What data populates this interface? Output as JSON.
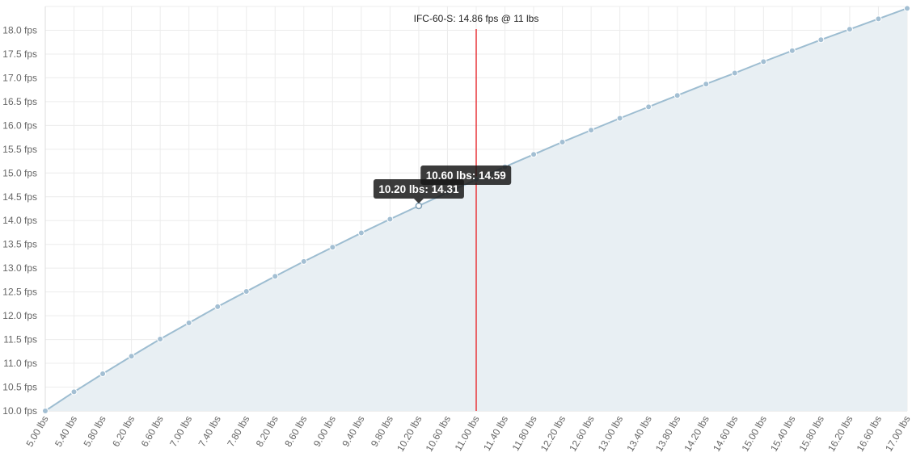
{
  "chart_data": {
    "type": "area",
    "x_unit": "lbs",
    "y_unit": "fps",
    "x": [
      5.0,
      5.4,
      5.8,
      6.2,
      6.6,
      7.0,
      7.4,
      7.8,
      8.2,
      8.6,
      9.0,
      9.4,
      9.8,
      10.2,
      10.6,
      11.0,
      11.4,
      11.8,
      12.2,
      12.6,
      13.0,
      13.4,
      13.8,
      14.2,
      14.6,
      15.0,
      15.4,
      15.8,
      16.2,
      16.6,
      17.0
    ],
    "x_tick_labels": [
      "5.00 lbs",
      "5.40 lbs",
      "5.80 lbs",
      "6.20 lbs",
      "6.60 lbs",
      "7.00 lbs",
      "7.40 lbs",
      "7.80 lbs",
      "8.20 lbs",
      "8.60 lbs",
      "9.00 lbs",
      "9.40 lbs",
      "9.80 lbs",
      "10.20 lbs",
      "10.60 lbs",
      "11.00 lbs",
      "11.40 lbs",
      "11.80 lbs",
      "12.20 lbs",
      "12.60 lbs",
      "13.00 lbs",
      "13.40 lbs",
      "13.80 lbs",
      "14.20 lbs",
      "14.60 lbs",
      "15.00 lbs",
      "15.40 lbs",
      "15.80 lbs",
      "16.20 lbs",
      "16.60 lbs",
      "17.00 lbs"
    ],
    "y": [
      10.0,
      10.4,
      10.78,
      11.15,
      11.51,
      11.85,
      12.19,
      12.51,
      12.83,
      13.14,
      13.44,
      13.74,
      14.03,
      14.31,
      14.59,
      14.86,
      15.13,
      15.39,
      15.65,
      15.9,
      16.15,
      16.39,
      16.63,
      16.87,
      17.1,
      17.34,
      17.57,
      17.8,
      18.02,
      18.24,
      18.46
    ],
    "y_tick_labels": [
      "10.0 fps",
      "10.5 fps",
      "11.0 fps",
      "11.5 fps",
      "12.0 fps",
      "12.5 fps",
      "13.0 fps",
      "13.5 fps",
      "14.0 fps",
      "14.5 fps",
      "15.0 fps",
      "15.5 fps",
      "16.0 fps",
      "16.5 fps",
      "17.0 fps",
      "17.5 fps",
      "18.0 fps"
    ],
    "y_ticks": [
      10.0,
      10.5,
      11.0,
      11.5,
      12.0,
      12.5,
      13.0,
      13.5,
      14.0,
      14.5,
      15.0,
      15.5,
      16.0,
      16.5,
      17.0,
      17.5,
      18.0
    ],
    "xlim": [
      5.0,
      17.0
    ],
    "ylim": [
      10.0,
      18.5
    ],
    "grid": true,
    "line_color": "#9dbdd1",
    "fill_color": "#e8eff3",
    "point_color": "#a3bfd3",
    "annotation": {
      "x": 11.0,
      "label": "IFC-60-S: 14.86 fps @ 11 lbs",
      "color": "#e8363b"
    },
    "tooltips": [
      {
        "x": 10.2,
        "text": "10.20 lbs: 14.31"
      },
      {
        "x": 10.6,
        "text": "10.60 lbs: 14.59"
      }
    ]
  }
}
